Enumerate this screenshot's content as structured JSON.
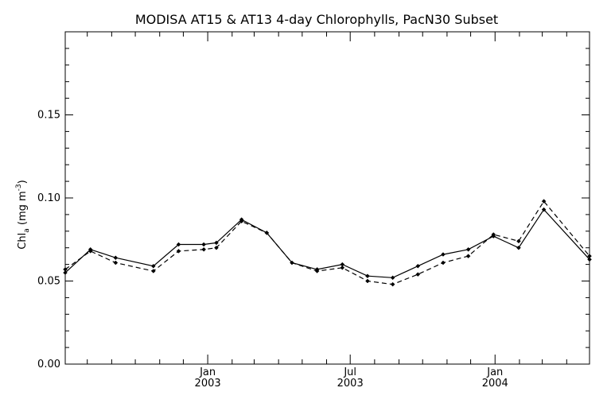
{
  "chart_data": {
    "type": "line",
    "title": "MODISA AT15 & AT13 4-day Chlorophylls, PacN30 Subset",
    "ylabel": {
      "base": "Chl",
      "sub": "a",
      "mid": " (mg m",
      "sup": "-3",
      "end": ")"
    },
    "xlabel": "",
    "ylim": [
      0.0,
      0.2
    ],
    "yticks": [
      {
        "value": 0.0,
        "label": "0.00"
      },
      {
        "value": 0.05,
        "label": "0.05"
      },
      {
        "value": 0.1,
        "label": "0.10"
      },
      {
        "value": 0.15,
        "label": "0.15"
      }
    ],
    "yminor_step": 0.01,
    "xlim": [
      "2002-07-04",
      "2004-04-30"
    ],
    "xticks": [
      {
        "date": "2003-01-01",
        "label1": "Jan",
        "label2": "2003"
      },
      {
        "date": "2003-07-01",
        "label1": "Jul",
        "label2": "2003"
      },
      {
        "date": "2004-01-01",
        "label1": "Jan",
        "label2": "2004"
      }
    ],
    "xminor_dates": [
      "2002-08-01",
      "2002-09-01",
      "2002-10-01",
      "2002-11-01",
      "2002-12-01",
      "2003-02-01",
      "2003-03-01",
      "2003-04-01",
      "2003-05-01",
      "2003-06-01",
      "2003-08-01",
      "2003-09-01",
      "2003-10-01",
      "2003-11-01",
      "2003-12-01",
      "2004-02-01",
      "2004-03-01",
      "2004-04-01"
    ],
    "xtick_labels_shown": [
      {
        "date": "2002-10-01",
        "label1": "",
        "label2": ""
      },
      {
        "date": "2003-04-01",
        "label1": "",
        "label2": ""
      },
      {
        "date": "2003-10-01",
        "label1": "",
        "label2": ""
      },
      {
        "date": "2004-04-01",
        "label1": "",
        "label2": ""
      }
    ],
    "grid": false,
    "legend": "none",
    "series": [
      {
        "style": "solid",
        "color": "#000000",
        "x": [
          "2002-07-04",
          "2002-08-05",
          "2002-09-06",
          "2002-10-24",
          "2002-11-25",
          "2002-12-27",
          "2003-01-12",
          "2003-02-13",
          "2003-03-17",
          "2003-04-18",
          "2003-05-20",
          "2003-06-21",
          "2003-07-23",
          "2003-08-24",
          "2003-09-25",
          "2003-10-27",
          "2003-11-28",
          "2003-12-30",
          "2004-01-31",
          "2004-03-03",
          "2004-04-30"
        ],
        "values": [
          0.055,
          0.069,
          0.064,
          0.059,
          0.072,
          0.072,
          0.073,
          0.087,
          0.079,
          0.061,
          0.057,
          0.06,
          0.053,
          0.052,
          0.059,
          0.066,
          0.069,
          0.077,
          0.07,
          0.093,
          0.063
        ]
      },
      {
        "style": "dashed",
        "color": "#000000",
        "x": [
          "2002-07-04",
          "2002-08-05",
          "2002-09-06",
          "2002-10-24",
          "2002-11-25",
          "2002-12-27",
          "2003-01-12",
          "2003-02-13",
          "2003-03-17",
          "2003-04-18",
          "2003-05-20",
          "2003-06-21",
          "2003-07-23",
          "2003-08-24",
          "2003-09-25",
          "2003-10-27",
          "2003-11-28",
          "2003-12-30",
          "2004-01-31",
          "2004-03-03",
          "2004-04-30"
        ],
        "values": [
          0.057,
          0.068,
          0.061,
          0.056,
          0.068,
          0.069,
          0.07,
          0.086,
          0.079,
          0.061,
          0.056,
          0.058,
          0.05,
          0.048,
          0.054,
          0.061,
          0.065,
          0.078,
          0.074,
          0.098,
          0.065
        ]
      }
    ]
  }
}
